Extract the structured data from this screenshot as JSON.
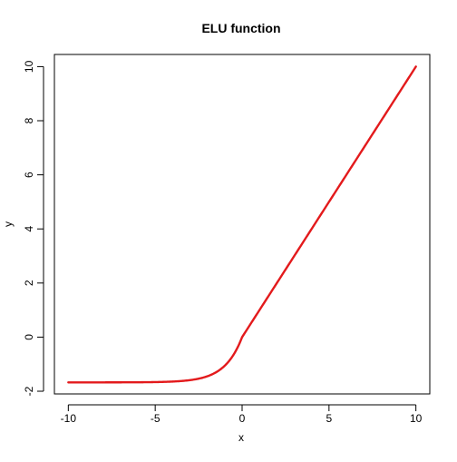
{
  "chart_data": {
    "type": "line",
    "title": "ELU function",
    "xlabel": "x",
    "ylabel": "y",
    "xlim": [
      -10.8,
      10.8
    ],
    "ylim": [
      -2.1,
      10.45
    ],
    "x_ticks": [
      -10,
      -5,
      0,
      5,
      10
    ],
    "x_tick_labels": [
      "-10",
      "-5",
      "0",
      "5",
      "10"
    ],
    "y_ticks": [
      -2,
      0,
      2,
      4,
      6,
      8,
      10
    ],
    "y_tick_labels": [
      "-2",
      "0",
      "2",
      "4",
      "6",
      "8",
      "10"
    ],
    "grid": false,
    "legend": "none",
    "series": [
      {
        "color": "#e31a1c",
        "function": "elu",
        "scale": 1.6733,
        "x_range": [
          -10,
          10
        ],
        "x": [
          -10,
          -8,
          -6,
          -5,
          -4.5,
          -4,
          -3.5,
          -3,
          -2.5,
          -2,
          -1.5,
          -1,
          -0.75,
          -0.5,
          -0.25,
          0,
          1,
          2,
          4,
          6,
          8,
          10
        ],
        "y": [
          -1.673,
          -1.673,
          -1.669,
          -1.662,
          -1.655,
          -1.643,
          -1.624,
          -1.59,
          -1.536,
          -1.447,
          -1.3,
          -1.058,
          -0.883,
          -0.658,
          -0.37,
          0,
          1,
          2,
          4,
          6,
          8,
          10
        ]
      }
    ]
  }
}
